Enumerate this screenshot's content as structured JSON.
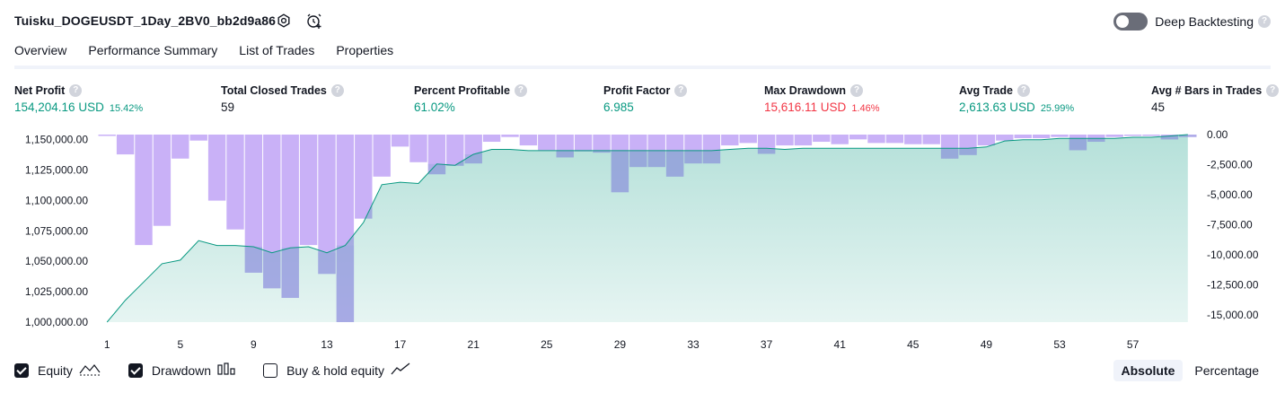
{
  "header": {
    "title": "Tuisku_DOGEUSDT_1Day_2BV0_bb2d9a86",
    "deep_backtesting_label": "Deep Backtesting",
    "help_glyph": "?"
  },
  "tabs": [
    {
      "label": "Overview",
      "active": true
    },
    {
      "label": "Performance Summary",
      "active": false
    },
    {
      "label": "List of Trades",
      "active": false
    },
    {
      "label": "Properties",
      "active": false
    }
  ],
  "metrics": [
    {
      "label": "Net Profit",
      "value": "154,204.16 USD",
      "pct": "15.42%",
      "color": "#089981"
    },
    {
      "label": "Total Closed Trades",
      "value": "59",
      "pct": "",
      "color": "#131722"
    },
    {
      "label": "Percent Profitable",
      "value": "61.02%",
      "pct": "",
      "color": "#089981"
    },
    {
      "label": "Profit Factor",
      "value": "6.985",
      "pct": "",
      "color": "#089981"
    },
    {
      "label": "Max Drawdown",
      "value": "15,616.11 USD",
      "pct": "1.46%",
      "color": "#f23645"
    },
    {
      "label": "Avg Trade",
      "value": "2,613.63 USD",
      "pct": "25.99%",
      "color": "#089981"
    },
    {
      "label": "Avg # Bars in Trades",
      "value": "45",
      "pct": "",
      "color": "#131722"
    }
  ],
  "chart_data": {
    "type": "area",
    "x_ticks": [
      1,
      5,
      9,
      13,
      17,
      21,
      25,
      29,
      33,
      37,
      41,
      45,
      49,
      53,
      57
    ],
    "left_axis": {
      "label": "Equity",
      "ticks": [
        "1,150,000.00",
        "1,125,000.00",
        "1,100,000.00",
        "1,075,000.00",
        "1,050,000.00",
        "1,025,000.00",
        "1,000,000.00"
      ],
      "ylim": [
        1000000,
        1154204
      ]
    },
    "right_axis": {
      "label": "Drawdown",
      "ticks": [
        "0.00",
        "-2,500.00",
        "-5,000.00",
        "-7,500.00",
        "-10,000.00",
        "-12,500.00",
        "-15,000.00"
      ],
      "ylim": [
        -15616.11,
        0
      ]
    },
    "series": [
      {
        "name": "Equity",
        "color": "#089981",
        "x": [
          1,
          2,
          3,
          4,
          5,
          6,
          7,
          8,
          9,
          10,
          11,
          12,
          13,
          14,
          15,
          16,
          17,
          18,
          19,
          20,
          21,
          22,
          23,
          24,
          25,
          26,
          27,
          28,
          29,
          30,
          31,
          32,
          33,
          34,
          35,
          36,
          37,
          38,
          39,
          40,
          41,
          42,
          43,
          44,
          45,
          46,
          47,
          48,
          49,
          50,
          51,
          52,
          53,
          54,
          55,
          56,
          57,
          58,
          59,
          60
        ],
        "values": [
          1000000,
          1018000,
          1033000,
          1048000,
          1051000,
          1067000,
          1063000,
          1063000,
          1062000,
          1057000,
          1061000,
          1062000,
          1057000,
          1063000,
          1082000,
          1113000,
          1115000,
          1114000,
          1130000,
          1129000,
          1138000,
          1142000,
          1142000,
          1141000,
          1141000,
          1141000,
          1141000,
          1141000,
          1141000,
          1141000,
          1141000,
          1141000,
          1141000,
          1141000,
          1142000,
          1143000,
          1143000,
          1142000,
          1143000,
          1143000,
          1143000,
          1143000,
          1143000,
          1143000,
          1143000,
          1143000,
          1143000,
          1143000,
          1144000,
          1149000,
          1150000,
          1150000,
          1151000,
          1151000,
          1151000,
          1151000,
          1152000,
          1152000,
          1153000,
          1154204
        ]
      },
      {
        "name": "Drawdown",
        "color": "#c9b1f7",
        "x": [
          1,
          2,
          3,
          4,
          5,
          6,
          7,
          8,
          9,
          10,
          11,
          12,
          13,
          14,
          15,
          16,
          17,
          18,
          19,
          20,
          21,
          22,
          23,
          24,
          25,
          26,
          27,
          28,
          29,
          30,
          31,
          32,
          33,
          34,
          35,
          36,
          37,
          38,
          39,
          40,
          41,
          42,
          43,
          44,
          45,
          46,
          47,
          48,
          49,
          50,
          51,
          52,
          53,
          54,
          55,
          56,
          57,
          58,
          59,
          60
        ],
        "values": [
          0,
          -1650,
          -9200,
          -7600,
          -2000,
          -500,
          -5500,
          -7900,
          -11500,
          -12800,
          -13600,
          -9200,
          -11600,
          -15616,
          -7000,
          -3500,
          -1000,
          -2300,
          -3300,
          -2600,
          -2400,
          -600,
          -200,
          -900,
          -1300,
          -1900,
          -1400,
          -1500,
          -4800,
          -2700,
          -2700,
          -3500,
          -2400,
          -2400,
          -900,
          -700,
          -1600,
          -900,
          -900,
          -600,
          -800,
          -400,
          -700,
          -700,
          -800,
          -800,
          -2000,
          -1700,
          -900,
          -500,
          -300,
          -300,
          -200,
          -1300,
          -600,
          -200,
          -100,
          -100,
          -400,
          -200
        ]
      }
    ],
    "grid": false
  },
  "legend": {
    "items": [
      {
        "label": "Equity",
        "checked": true
      },
      {
        "label": "Drawdown",
        "checked": true
      },
      {
        "label": "Buy & hold equity",
        "checked": false
      }
    ]
  },
  "modes": {
    "absolute": "Absolute",
    "percentage": "Percentage"
  }
}
